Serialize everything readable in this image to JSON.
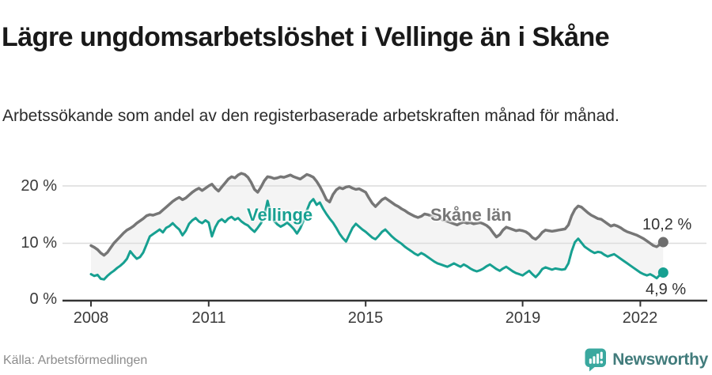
{
  "header": {
    "title": "Lägre ungdomsarbetslöshet i Vellinge än i Skåne",
    "subtitle": "Arbetssökande som andel av den registerbaserade arbetskraften månad för månad."
  },
  "footer": {
    "source": "Källa: Arbetsförmedlingen",
    "brand": "Newsworthy"
  },
  "colors": {
    "vellinge_line": "#17a091",
    "skane_line": "#767676",
    "band_fill": "#f4f4f4",
    "gridline": "#dcdcdc",
    "axis": "#333333",
    "brand_icon": "#3aa89f",
    "brand_text": "#427c7c"
  },
  "chart_data": {
    "type": "line",
    "title": "Lägre ungdomsarbetslöshet i Vellinge än i Skåne",
    "subtitle": "Arbetssökande som andel av den registerbaserade arbetskraften månad för månad.",
    "unit": "%",
    "x_start": {
      "year": 2008,
      "month": 1
    },
    "x_end": {
      "year": 2022,
      "month": 8
    },
    "frequency": "monthly",
    "ylim": [
      0,
      24
    ],
    "grid": "horizontal",
    "band_between_series": true,
    "yticks": [
      {
        "value": 0,
        "label": "0 %"
      },
      {
        "value": 10,
        "label": "10 %"
      },
      {
        "value": 20,
        "label": "20 %"
      }
    ],
    "xticks": [
      {
        "value": 2008,
        "label": "2008"
      },
      {
        "value": 2011,
        "label": "2011"
      },
      {
        "value": 2015,
        "label": "2015"
      },
      {
        "value": 2019,
        "label": "2019"
      },
      {
        "value": 2022,
        "label": "2022"
      }
    ],
    "series": [
      {
        "name": "Skåne län",
        "end_value": 10.2,
        "end_label": "10,2 %",
        "values": [
          9.6,
          9.3,
          8.9,
          8.3,
          7.9,
          8.4,
          9.2,
          10.0,
          10.6,
          11.2,
          11.8,
          12.3,
          12.6,
          13.0,
          13.5,
          13.9,
          14.3,
          14.8,
          15.0,
          14.9,
          15.1,
          15.3,
          15.8,
          16.3,
          16.8,
          17.3,
          17.7,
          18.0,
          17.6,
          17.9,
          18.4,
          18.9,
          19.3,
          19.6,
          19.2,
          19.6,
          20.0,
          20.3,
          19.6,
          19.1,
          19.8,
          20.5,
          21.2,
          21.6,
          21.4,
          21.9,
          22.2,
          22.0,
          21.5,
          20.6,
          19.4,
          18.9,
          19.8,
          20.9,
          21.6,
          21.5,
          21.3,
          21.4,
          21.6,
          21.5,
          21.7,
          21.9,
          21.6,
          21.4,
          21.2,
          21.6,
          22.0,
          21.8,
          21.5,
          20.8,
          19.9,
          18.8,
          17.6,
          17.2,
          18.5,
          19.3,
          19.7,
          19.5,
          19.8,
          19.9,
          19.6,
          19.4,
          19.5,
          19.2,
          18.9,
          17.9,
          17.0,
          16.4,
          17.0,
          17.6,
          17.9,
          17.5,
          17.1,
          16.7,
          16.4,
          16.0,
          15.7,
          15.3,
          15.0,
          14.7,
          14.5,
          14.7,
          15.1,
          15.0,
          14.8,
          14.6,
          14.4,
          14.2,
          14.0,
          13.8,
          13.6,
          13.4,
          13.2,
          13.5,
          13.7,
          13.5,
          13.6,
          13.4,
          13.5,
          13.6,
          13.4,
          13.1,
          12.6,
          11.8,
          11.1,
          11.5,
          12.3,
          12.8,
          12.6,
          12.4,
          12.2,
          12.3,
          12.2,
          12.0,
          11.6,
          11.0,
          10.7,
          11.2,
          11.9,
          12.3,
          12.2,
          12.1,
          12.2,
          12.3,
          12.4,
          12.5,
          13.2,
          14.8,
          15.9,
          16.5,
          16.3,
          15.8,
          15.3,
          14.9,
          14.6,
          14.3,
          14.2,
          13.8,
          13.4,
          13.0,
          13.2,
          13.0,
          12.7,
          12.3,
          12.0,
          11.8,
          11.6,
          11.4,
          11.1,
          10.8,
          10.4,
          10.0,
          9.6,
          9.4,
          9.8,
          10.2
        ]
      },
      {
        "name": "Vellinge",
        "end_value": 4.9,
        "end_label": "4,9 %",
        "values": [
          4.6,
          4.3,
          4.5,
          3.8,
          3.7,
          4.3,
          4.8,
          5.2,
          5.7,
          6.1,
          6.6,
          7.3,
          8.6,
          7.9,
          7.3,
          7.6,
          8.4,
          9.8,
          11.2,
          11.6,
          12.0,
          12.4,
          11.9,
          12.7,
          13.0,
          13.5,
          12.9,
          12.4,
          11.4,
          12.2,
          13.4,
          14.0,
          14.4,
          13.8,
          13.5,
          14.0,
          13.6,
          11.2,
          12.8,
          13.8,
          14.2,
          13.7,
          14.3,
          14.6,
          14.1,
          14.4,
          13.8,
          13.4,
          13.1,
          12.5,
          12.0,
          12.7,
          13.5,
          14.8,
          17.4,
          15.1,
          13.9,
          13.3,
          12.9,
          13.2,
          13.6,
          13.1,
          12.5,
          11.7,
          12.6,
          13.9,
          15.7,
          17.1,
          17.7,
          16.7,
          17.1,
          16.0,
          15.1,
          14.3,
          13.6,
          12.7,
          11.7,
          10.9,
          10.3,
          11.5,
          12.7,
          13.4,
          12.9,
          12.4,
          12.0,
          11.5,
          11.0,
          10.7,
          11.3,
          12.0,
          12.4,
          11.8,
          11.2,
          10.7,
          10.3,
          9.9,
          9.4,
          9.0,
          8.6,
          8.2,
          7.9,
          8.3,
          8.0,
          7.6,
          7.2,
          6.8,
          6.5,
          6.3,
          6.1,
          5.9,
          6.2,
          6.5,
          6.2,
          5.9,
          6.3,
          6.0,
          5.6,
          5.3,
          5.1,
          5.3,
          5.6,
          6.0,
          6.3,
          5.9,
          5.5,
          5.2,
          5.6,
          5.9,
          5.5,
          5.1,
          4.8,
          4.6,
          4.4,
          4.8,
          5.2,
          4.6,
          4.1,
          4.7,
          5.5,
          5.8,
          5.6,
          5.4,
          5.6,
          5.5,
          5.4,
          5.5,
          6.5,
          8.6,
          10.2,
          10.8,
          10.1,
          9.4,
          9.0,
          8.6,
          8.3,
          8.5,
          8.4,
          8.0,
          7.7,
          7.9,
          8.1,
          7.7,
          7.3,
          6.9,
          6.5,
          6.1,
          5.7,
          5.3,
          4.9,
          4.6,
          4.4,
          4.6,
          4.3,
          3.9,
          4.5,
          4.9
        ]
      }
    ],
    "legend_position": "inline-labels"
  }
}
